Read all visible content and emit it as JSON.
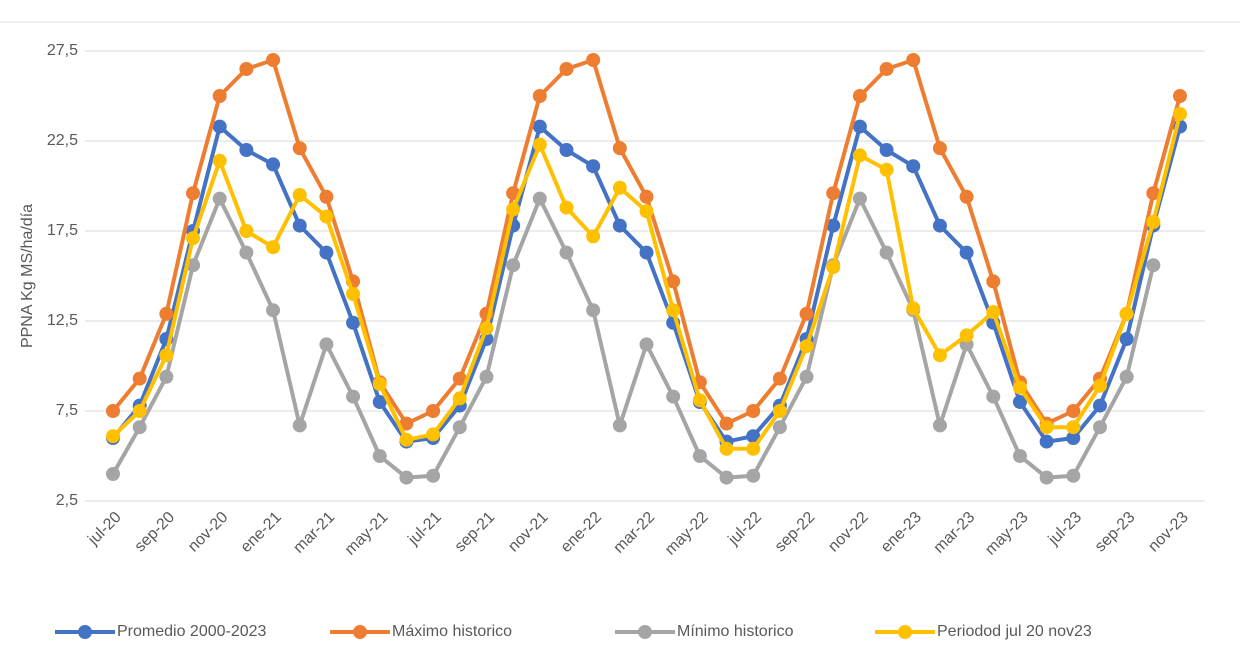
{
  "chart_data": {
    "type": "line",
    "y_label": "PPNA Kg MS/ha/día",
    "categories": [
      "jul-20",
      null,
      "sep-20",
      null,
      "nov-20",
      null,
      "ene-21",
      null,
      "mar-21",
      null,
      "may-21",
      null,
      "jul-21",
      null,
      "sep-21",
      null,
      "nov-21",
      null,
      "ene-22",
      null,
      "mar-22",
      null,
      "may-22",
      null,
      "jul-22",
      null,
      "sep-22",
      null,
      "nov-22",
      null,
      "ene-23",
      null,
      "mar-23",
      null,
      "may-23",
      null,
      "jul-23",
      null,
      "sep-23",
      null,
      "nov-23"
    ],
    "series": [
      {
        "name": "Promedio 2000-2023",
        "color": "#4472c4",
        "values": [
          6.0,
          7.8,
          11.5,
          17.5,
          23.3,
          22.0,
          21.2,
          17.8,
          16.3,
          12.4,
          8.0,
          5.8,
          6.0,
          7.8,
          11.5,
          17.8,
          23.3,
          22.0,
          21.1,
          17.8,
          16.3,
          12.4,
          8.0,
          5.8,
          6.1,
          7.8,
          11.5,
          17.8,
          23.3,
          22.0,
          21.1,
          17.8,
          16.3,
          12.4,
          8.0,
          5.8,
          6.0,
          7.8,
          11.5,
          17.8,
          23.3
        ]
      },
      {
        "name": "Máximo historico",
        "color": "#ed7d31",
        "values": [
          7.5,
          9.3,
          12.9,
          19.6,
          25.0,
          26.5,
          27.0,
          22.1,
          19.4,
          14.7,
          9.1,
          6.8,
          7.5,
          9.3,
          12.9,
          19.6,
          25.0,
          26.5,
          27.0,
          22.1,
          19.4,
          14.7,
          9.1,
          6.8,
          7.5,
          9.3,
          12.9,
          19.6,
          25.0,
          26.5,
          27.0,
          22.1,
          19.4,
          14.7,
          9.1,
          6.8,
          7.5,
          9.3,
          12.9,
          19.6,
          25.0
        ]
      },
      {
        "name": "Mínimo historico",
        "color": "#a5a5a5",
        "values": [
          4.0,
          6.6,
          9.4,
          15.6,
          19.3,
          16.3,
          13.1,
          6.7,
          11.2,
          8.3,
          5.0,
          3.8,
          3.9,
          6.6,
          9.4,
          15.6,
          19.3,
          16.3,
          13.1,
          6.7,
          11.2,
          8.3,
          5.0,
          3.8,
          3.9,
          6.6,
          9.4,
          15.6,
          19.3,
          16.3,
          13.1,
          6.7,
          11.2,
          8.3,
          5.0,
          3.8,
          3.9,
          6.6,
          9.4,
          15.6,
          null
        ]
      },
      {
        "name": "Periodod jul 20 nov23",
        "color": "#ffc000",
        "values": [
          6.1,
          7.5,
          10.6,
          17.1,
          21.4,
          17.5,
          16.6,
          19.5,
          18.3,
          14.0,
          9.0,
          5.9,
          6.2,
          8.2,
          12.1,
          18.7,
          22.3,
          18.8,
          17.2,
          19.9,
          18.6,
          13.1,
          8.1,
          5.4,
          5.4,
          7.5,
          11.1,
          15.5,
          21.7,
          20.9,
          13.2,
          10.6,
          11.7,
          13.0,
          8.8,
          6.6,
          6.6,
          8.9,
          12.9,
          18.0,
          24.0
        ]
      }
    ],
    "ylim": [
      2.5,
      27.5
    ],
    "yticks": [
      {
        "value": 2.5,
        "label": "2,5"
      },
      {
        "value": 7.5,
        "label": "7,5"
      },
      {
        "value": 12.5,
        "label": "12,5"
      },
      {
        "value": 17.5,
        "label": "17,5"
      },
      {
        "value": 22.5,
        "label": "22,5"
      },
      {
        "value": 27.5,
        "label": "27,5"
      }
    ],
    "grid": true,
    "legend": "bottom"
  }
}
